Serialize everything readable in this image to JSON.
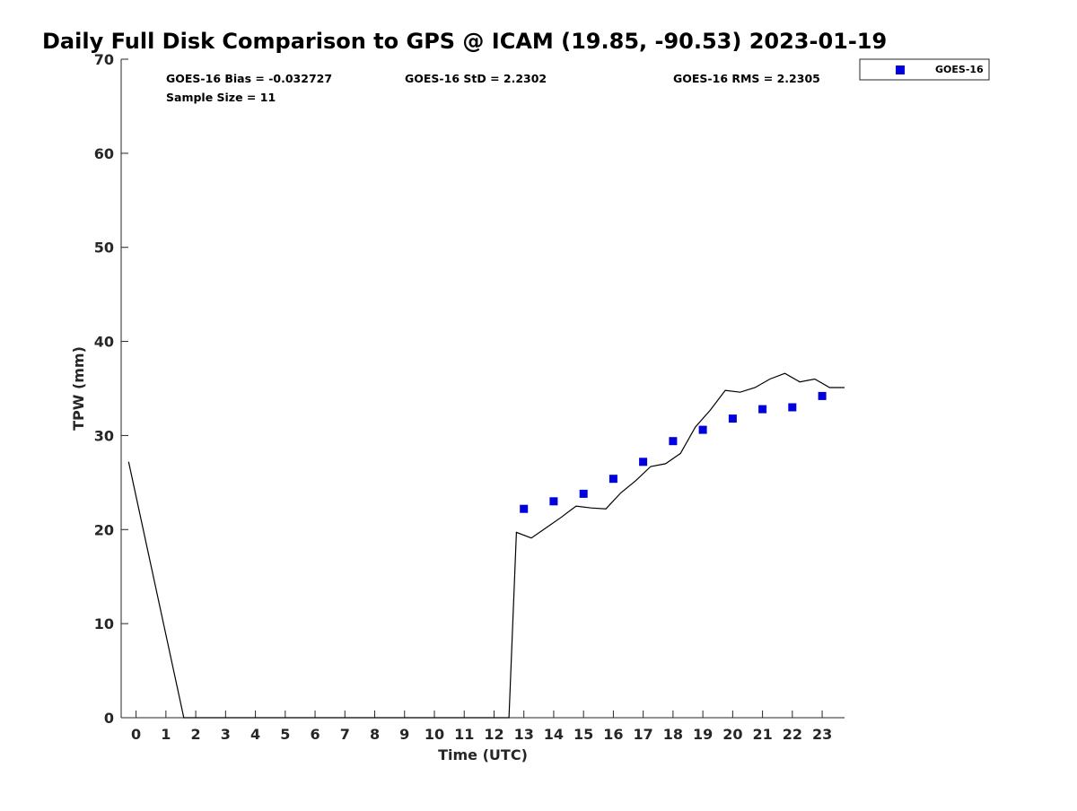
{
  "chart_data": {
    "type": "scatter",
    "title": "Daily Full Disk Comparison to GPS @ ICAM (19.85, -90.53) 2023-01-19",
    "xlabel": "Time (UTC)",
    "ylabel": "TPW (mm)",
    "xlim": [
      -0.5,
      23.75
    ],
    "ylim": [
      0,
      70
    ],
    "xticks": [
      "0",
      "1",
      "2",
      "3",
      "4",
      "5",
      "6",
      "7",
      "8",
      "9",
      "10",
      "11",
      "12",
      "13",
      "14",
      "15",
      "16",
      "17",
      "18",
      "19",
      "20",
      "21",
      "22",
      "23"
    ],
    "yticks": [
      "0",
      "10",
      "20",
      "30",
      "40",
      "50",
      "60",
      "70"
    ],
    "grid": false,
    "legend_position": "top-right",
    "stats": {
      "bias": "GOES-16 Bias = -0.032727",
      "std": "GOES-16 StD = 2.2302",
      "rms": "GOES-16 RMS = 2.2305",
      "sample": "Sample Size = 11"
    },
    "series": [
      {
        "name": "GOES-16",
        "kind": "scatter",
        "color": "#0000dd",
        "marker": "square",
        "x": [
          13,
          14,
          15,
          16,
          17,
          18,
          19,
          20,
          21,
          22,
          23
        ],
        "y": [
          22.2,
          23.0,
          23.8,
          25.4,
          27.2,
          29.4,
          30.6,
          31.8,
          32.8,
          33.0,
          34.2
        ]
      },
      {
        "kind": "line",
        "color": "#000000",
        "x": [
          -0.25,
          1.6,
          2.0,
          12.0,
          12.5,
          12.75,
          13.25,
          13.75,
          14.25,
          14.75,
          15.25,
          15.75,
          16.25,
          16.75,
          17.25,
          17.75,
          18.25,
          18.75,
          19.25,
          19.75,
          20.25,
          20.75,
          21.25,
          21.75,
          22.25,
          22.75,
          23.25,
          23.75
        ],
        "y": [
          27.2,
          0,
          0,
          0,
          0,
          19.7,
          19.1,
          20.2,
          21.3,
          22.5,
          22.3,
          22.2,
          23.9,
          25.2,
          26.7,
          27.0,
          28.1,
          30.9,
          32.7,
          34.8,
          34.6,
          35.1,
          36.0,
          36.6,
          35.7,
          36.0,
          35.1,
          35.1
        ]
      }
    ]
  }
}
